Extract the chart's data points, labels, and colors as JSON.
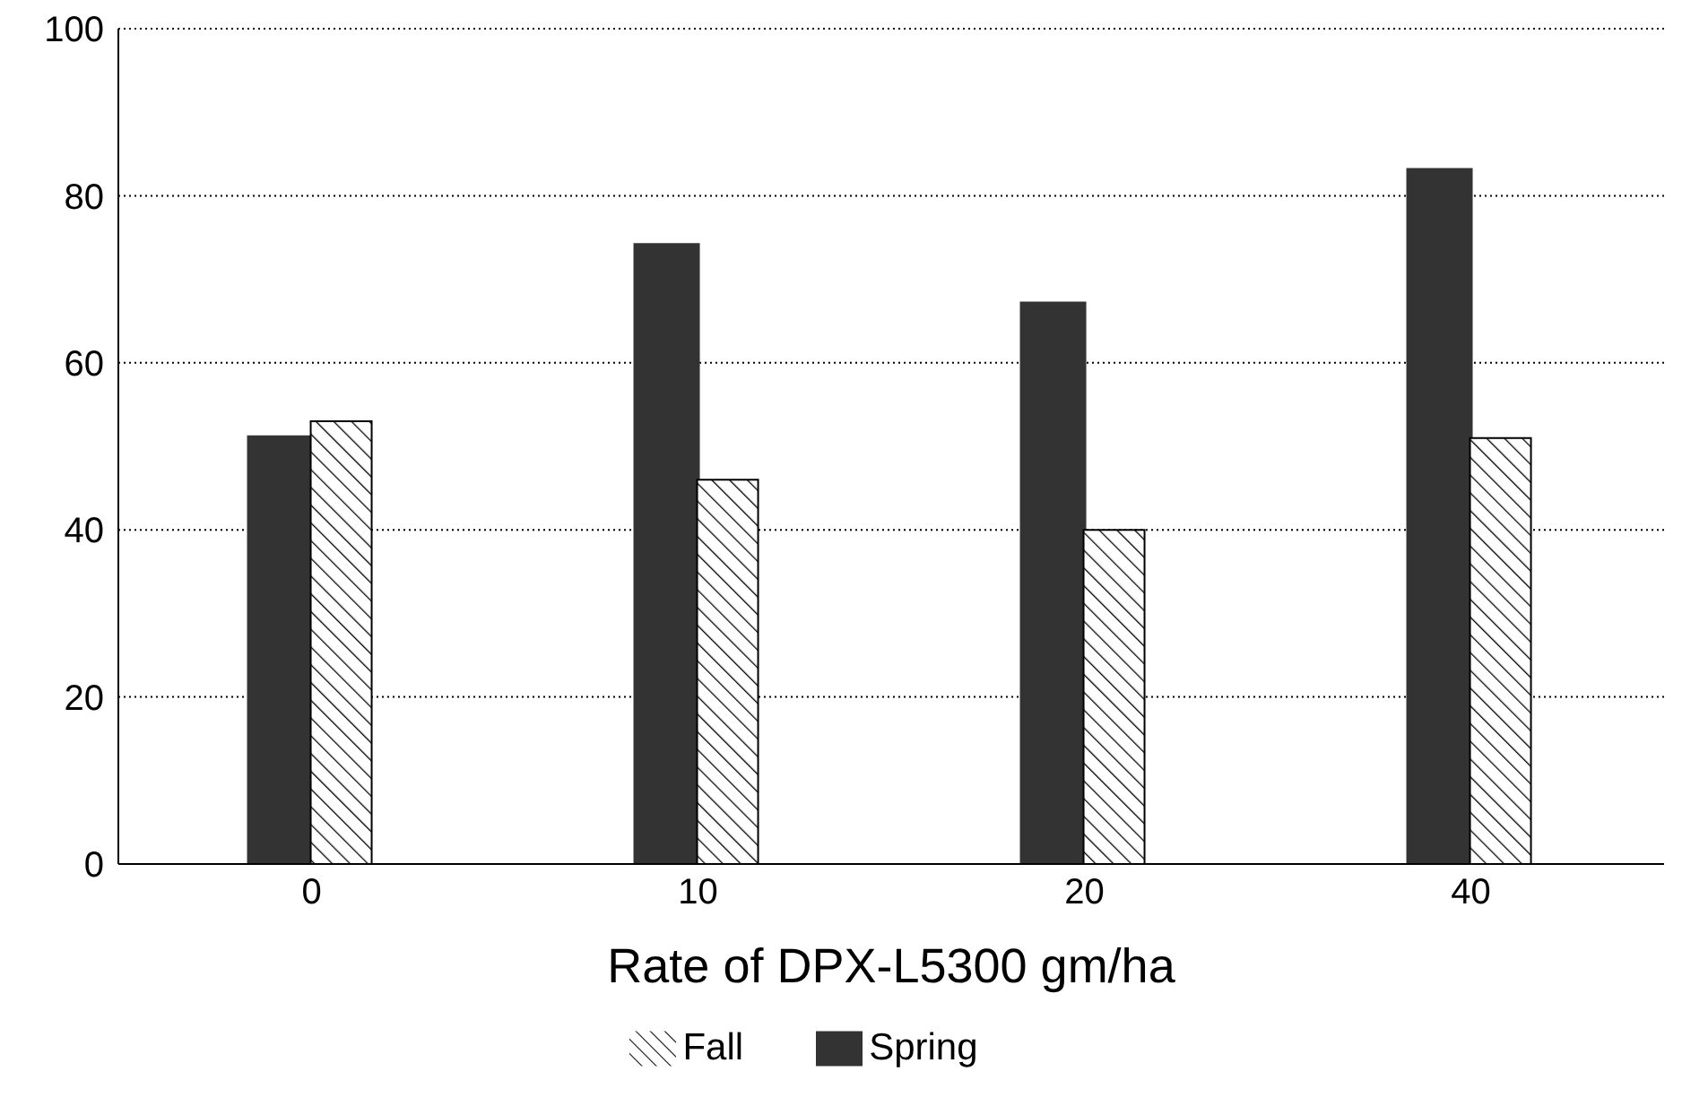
{
  "chart_data": {
    "type": "bar",
    "xlabel": "Rate of DPX-L5300 gm/ha",
    "categories": [
      "0",
      "10",
      "20",
      "40"
    ],
    "series": [
      {
        "name": "Spring",
        "color": "#333333",
        "values": [
          51,
          74,
          67,
          83
        ]
      },
      {
        "name": "Fall",
        "color": "#000000",
        "values": [
          53,
          46,
          40,
          51
        ]
      }
    ],
    "ylim": [
      0,
      100
    ],
    "yticks": [
      0,
      20,
      40,
      60,
      80,
      100
    ],
    "grid": "y",
    "legend": "bottom"
  }
}
